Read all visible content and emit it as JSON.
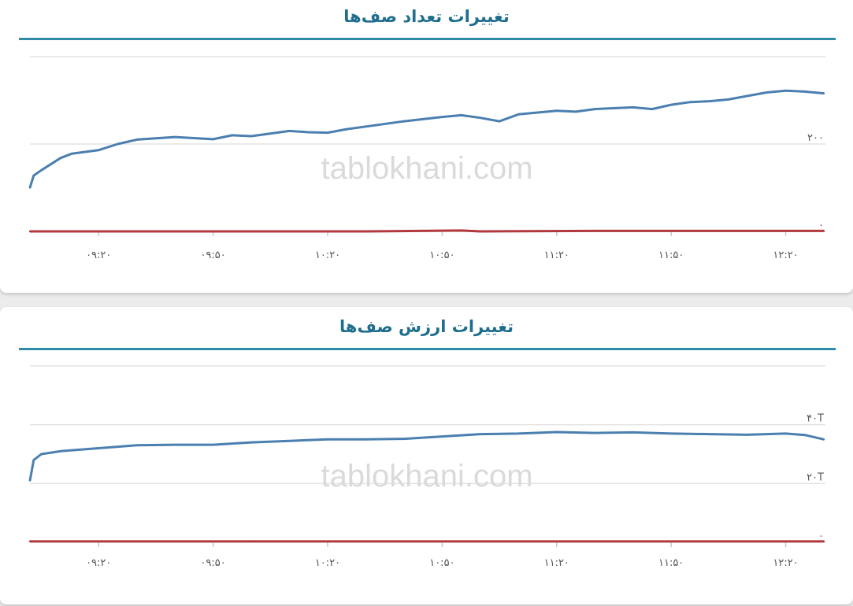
{
  "colors": {
    "blue_series": "#4a7fb0",
    "red_series": "#b2393d",
    "grid": "#e3e3e3",
    "title": "#1f6e8e",
    "rule": "#2f8aa6"
  },
  "watermark": "tablokhani.com",
  "chart_data": [
    {
      "type": "line",
      "title": "تغییرات تعداد صف‌ها",
      "xlabel": "",
      "ylabel": "",
      "x_ticks": [
        "۰۹:۲۰",
        "۰۹:۵۰",
        "۱۰:۲۰",
        "۱۰:۵۰",
        "۱۱:۲۰",
        "۱۱:۵۰",
        "۱۲:۲۰"
      ],
      "x_tick_times": [
        "09:20",
        "09:50",
        "10:20",
        "10:50",
        "11:20",
        "11:50",
        "12:20"
      ],
      "x_range": [
        "09:02",
        "12:30"
      ],
      "y_ticks": [
        0,
        200
      ],
      "y_tick_labels": [
        "۰",
        "۲۰۰",
        ""
      ],
      "ylim": [
        0,
        400
      ],
      "grid": true,
      "series": [
        {
          "color": "#4a7fb0",
          "x": [
            "09:02",
            "09:03",
            "09:05",
            "09:10",
            "09:13",
            "09:20",
            "09:25",
            "09:30",
            "09:40",
            "09:50",
            "09:55",
            "10:00",
            "10:10",
            "10:15",
            "10:20",
            "10:25",
            "10:30",
            "10:40",
            "10:50",
            "10:55",
            "11:00",
            "11:05",
            "11:10",
            "11:20",
            "11:25",
            "11:30",
            "11:40",
            "11:45",
            "11:50",
            "11:55",
            "12:00",
            "12:05",
            "12:10",
            "12:15",
            "12:20",
            "12:25",
            "12:30"
          ],
          "y": [
            100,
            128,
            140,
            168,
            178,
            186,
            200,
            210,
            216,
            211,
            220,
            218,
            230,
            227,
            226,
            234,
            240,
            252,
            262,
            266,
            260,
            252,
            268,
            276,
            274,
            280,
            284,
            280,
            290,
            296,
            298,
            302,
            310,
            318,
            322,
            320,
            316
          ]
        },
        {
          "color": "#b2393d",
          "x": [
            "09:02",
            "09:30",
            "10:00",
            "10:30",
            "10:55",
            "11:00",
            "11:30",
            "12:00",
            "12:30"
          ],
          "y": [
            0,
            0,
            0,
            0,
            2,
            0,
            1,
            1,
            1
          ]
        }
      ]
    },
    {
      "type": "line",
      "title": "تغییرات ارزش صف‌ها",
      "xlabel": "",
      "ylabel": "",
      "x_ticks": [
        "۰۹:۲۰",
        "۰۹:۵۰",
        "۱۰:۲۰",
        "۱۰:۵۰",
        "۱۱:۲۰",
        "۱۱:۵۰",
        "۱۲:۲۰"
      ],
      "x_tick_times": [
        "09:20",
        "09:50",
        "10:20",
        "10:50",
        "11:20",
        "11:50",
        "12:20"
      ],
      "x_range": [
        "09:02",
        "12:30"
      ],
      "y_ticks": [
        0,
        20,
        40
      ],
      "y_tick_labels": [
        "۰",
        "۲۰T",
        "۴۰T",
        ""
      ],
      "ylim": [
        0,
        60
      ],
      "unit": "T",
      "grid": true,
      "series": [
        {
          "color": "#4a7fb0",
          "x": [
            "09:02",
            "09:03",
            "09:05",
            "09:10",
            "09:20",
            "09:30",
            "09:40",
            "09:50",
            "10:00",
            "10:10",
            "10:20",
            "10:30",
            "10:40",
            "10:50",
            "11:00",
            "11:10",
            "11:20",
            "11:30",
            "11:40",
            "11:50",
            "12:00",
            "12:10",
            "12:20",
            "12:25",
            "12:30"
          ],
          "y": [
            21,
            28,
            30,
            31,
            32,
            33,
            33.2,
            33.2,
            34,
            34.5,
            35,
            35,
            35.2,
            36,
            36.8,
            37,
            37.5,
            37.2,
            37.4,
            37,
            36.8,
            36.6,
            37,
            36.5,
            35
          ]
        },
        {
          "color": "#b2393d",
          "x": [
            "09:02",
            "10:00",
            "11:00",
            "12:00",
            "12:30"
          ],
          "y": [
            0.3,
            0.3,
            0.3,
            0.3,
            0.3
          ]
        }
      ]
    }
  ]
}
